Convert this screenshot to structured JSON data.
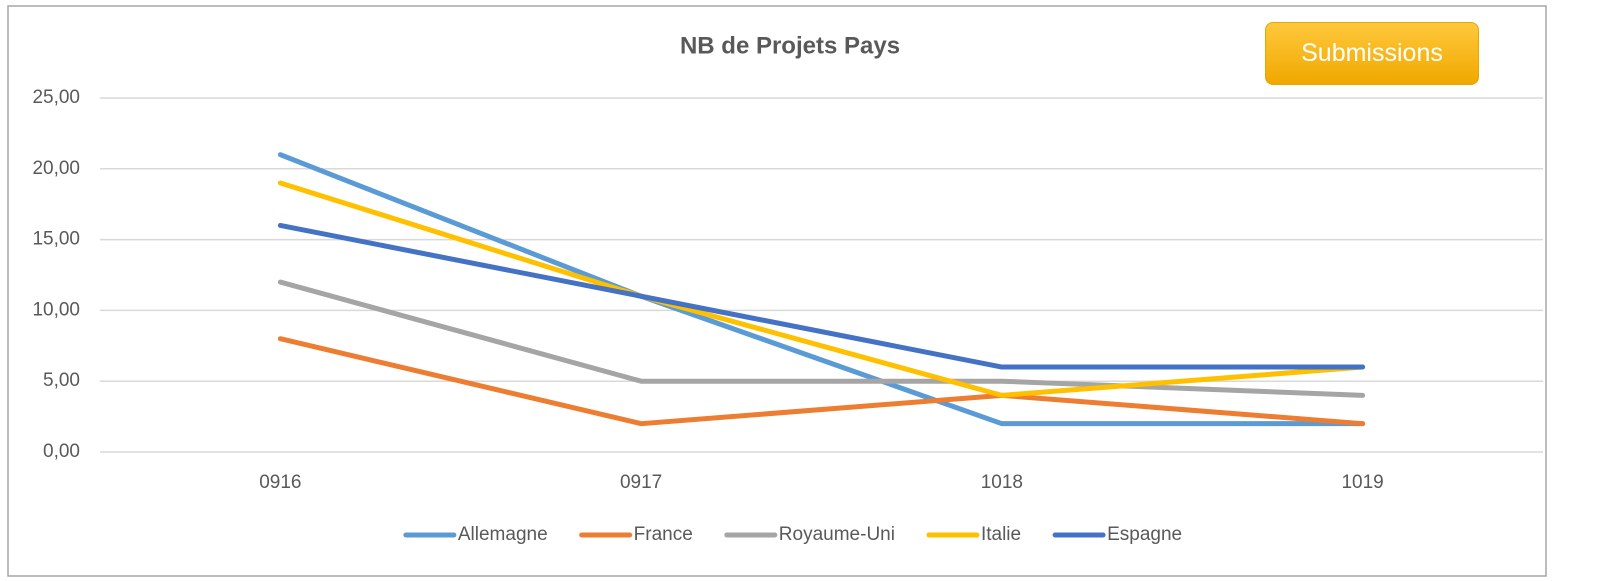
{
  "chart_data": {
    "type": "line",
    "title": "NB de Projets Pays",
    "categories": [
      "0916",
      "0917",
      "1018",
      "1019"
    ],
    "series": [
      {
        "name": "Allemagne",
        "color": "#5b9bd5",
        "values": [
          21,
          11,
          2,
          2
        ]
      },
      {
        "name": "France",
        "color": "#ed7d31",
        "values": [
          8,
          2,
          4,
          2
        ]
      },
      {
        "name": "Royaume-Uni",
        "color": "#a5a5a5",
        "values": [
          12,
          5,
          5,
          4
        ]
      },
      {
        "name": "Italie",
        "color": "#ffc000",
        "values": [
          19,
          11,
          4,
          6
        ]
      },
      {
        "name": "Espagne",
        "color": "#4472c4",
        "values": [
          16,
          11,
          6,
          6
        ]
      }
    ],
    "ylim": [
      0,
      25
    ],
    "yticks": [
      {
        "value": 0,
        "label": "0,00"
      },
      {
        "value": 5,
        "label": "5,00"
      },
      {
        "value": 10,
        "label": "10,00"
      },
      {
        "value": 15,
        "label": "15,00"
      },
      {
        "value": 20,
        "label": "20,00"
      },
      {
        "value": 25,
        "label": "25,00"
      }
    ],
    "grid": true,
    "legend": "bottom"
  },
  "button": {
    "label": "Submissions"
  }
}
